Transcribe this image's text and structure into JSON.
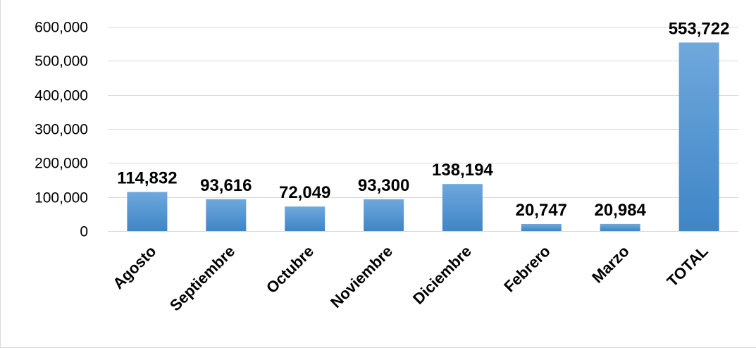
{
  "chart_data": {
    "type": "bar",
    "categories": [
      "Agosto",
      "Septiembre",
      "Octubre",
      "Noviembre",
      "Diciembre",
      "Febrero",
      "Marzo",
      "TOTAL"
    ],
    "values": [
      114832,
      93616,
      72049,
      93300,
      138194,
      20747,
      20984,
      553722
    ],
    "data_labels": [
      "114,832",
      "93,616",
      "72,049",
      "93,300",
      "138,194",
      "20,747",
      "20,984",
      "553,722"
    ],
    "y_ticks": [
      0,
      100000,
      200000,
      300000,
      400000,
      500000,
      600000
    ],
    "y_tick_labels": [
      "0",
      "100,000",
      "200,000",
      "300,000",
      "400,000",
      "500,000",
      "600,000"
    ],
    "ylim": [
      0,
      600000
    ],
    "title": "",
    "xlabel": "",
    "ylabel": "",
    "grid": true,
    "legend": "none",
    "bar_color_top": "#6fa8dc",
    "bar_color_bottom": "#3f85c6",
    "gridline_color": "#d9d9d9"
  }
}
